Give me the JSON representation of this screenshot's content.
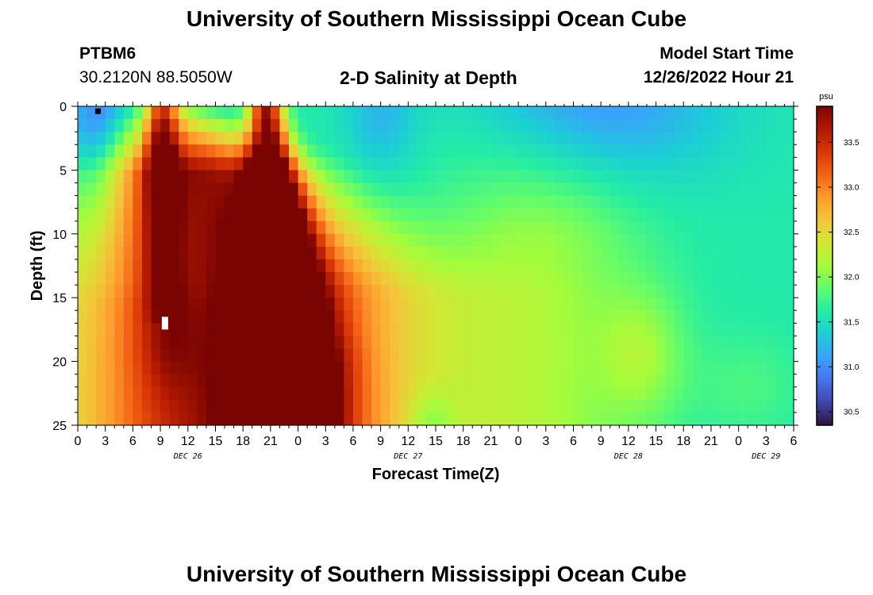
{
  "page": {
    "title": "University of Southern Mississippi Ocean Cube",
    "footer_title": "University of Southern Mississippi Ocean Cube",
    "station_id": "PTBM6",
    "coordinates": "30.2120N  88.5050W",
    "chart_heading": "2-D Salinity at Depth",
    "model_start_label": "Model Start Time",
    "model_start_value": "12/26/2022 Hour 21"
  },
  "chart_data": {
    "type": "heatmap",
    "title": "2-D Salinity at Depth",
    "xlabel": "Forecast Time(Z)",
    "ylabel": "Depth (ft)",
    "y_ticks": [
      0,
      5,
      10,
      15,
      20,
      25
    ],
    "ylim": [
      0,
      25
    ],
    "x_hours_from_start": [
      0,
      78
    ],
    "x_tick_labels": [
      "0",
      "3",
      "6",
      "9",
      "12",
      "15",
      "18",
      "21",
      "0",
      "3",
      "6",
      "9",
      "12",
      "15",
      "18",
      "21",
      "0",
      "3",
      "6",
      "9",
      "12",
      "15",
      "18",
      "21",
      "0",
      "3",
      "6"
    ],
    "date_labels": [
      {
        "text": "DEC 26",
        "hour": 12
      },
      {
        "text": "DEC 27",
        "hour": 36
      },
      {
        "text": "DEC 28",
        "hour": 60
      },
      {
        "text": "DEC 29",
        "hour": 75
      }
    ],
    "colorbar": {
      "unit": "psu",
      "min": 30.35,
      "max": 33.9,
      "ticks": [
        "33.5",
        "33.0",
        "32.5",
        "32.0",
        "31.5",
        "31.0",
        "30.5"
      ],
      "colors": [
        "#30123b",
        "#4145ab",
        "#4675ed",
        "#39a2fc",
        "#1bcfd4",
        "#24eca6",
        "#61fc6c",
        "#a4fc3b",
        "#d1e834",
        "#f3c63a",
        "#fe9b2d",
        "#f36315",
        "#d93806",
        "#b11901",
        "#7a0402"
      ]
    },
    "grid": {
      "columns": 78,
      "rows": 25,
      "note": "salinity values (psu) vs forecast hour and depth (ft)"
    },
    "markers": [
      {
        "type": "black-square",
        "hour": 2.2,
        "depth": 0.2
      },
      {
        "type": "white-rect",
        "hour": 9.5,
        "depth": 17.0
      }
    ]
  }
}
